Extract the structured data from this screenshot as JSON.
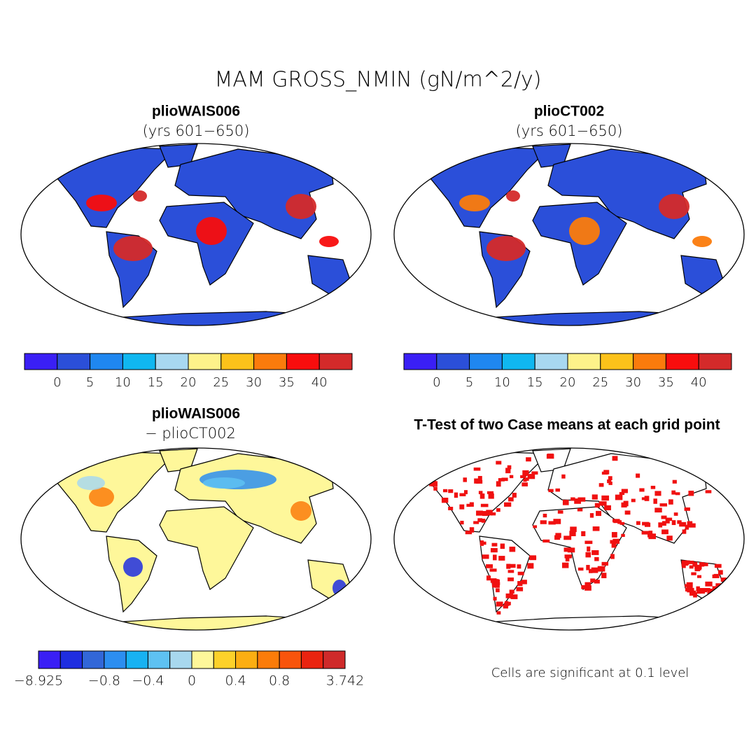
{
  "title": "MAM GROSS_NMIN (gN/m^2/y)",
  "panels": [
    {
      "title": "plioWAIS006",
      "subtitle": "(yrs 601−650)",
      "colorbar": {
        "colors": [
          "#3a1ff5",
          "#2b4fd9",
          "#1f87f0",
          "#10b7f0",
          "#a8d8f0",
          "#fdf28a",
          "#fcc21a",
          "#fb7b0c",
          "#f80d0d",
          "#d42a2a"
        ],
        "labels": [
          null,
          "0",
          "5",
          "10",
          "15",
          "20",
          "25",
          "30",
          "35",
          "40",
          null
        ]
      }
    },
    {
      "title": "plioCT002",
      "subtitle": "(yrs 601−650)",
      "colorbar": {
        "colors": [
          "#3a1ff5",
          "#2b4fd9",
          "#1f87f0",
          "#10b7f0",
          "#a8d8f0",
          "#fdf28a",
          "#fcc21a",
          "#fb7b0c",
          "#f80d0d",
          "#d42a2a"
        ],
        "labels": [
          null,
          "0",
          "5",
          "10",
          "15",
          "20",
          "25",
          "30",
          "35",
          "40",
          null
        ]
      }
    },
    {
      "title": "plioWAIS006",
      "subtitle": "− plioCT002",
      "colorbar": {
        "colors": [
          "#3a1ff5",
          "#1f2ee0",
          "#3267d8",
          "#2c8ef0",
          "#18b2f2",
          "#5ec1f2",
          "#a8d8ee",
          "#fef79a",
          "#fdd12a",
          "#fcae12",
          "#fb7c0a",
          "#f8540c",
          "#ea2410",
          "#cf2a2a"
        ],
        "labels": [
          "−8.925",
          null,
          null,
          "−0.8",
          null,
          "−0.4",
          null,
          "0",
          null,
          "0.4",
          null,
          "0.8",
          null,
          null,
          "3.742"
        ]
      }
    },
    {
      "title": "T-Test of two Case means at each grid point",
      "note": "Cells are significant at 0.1 level"
    }
  ]
}
